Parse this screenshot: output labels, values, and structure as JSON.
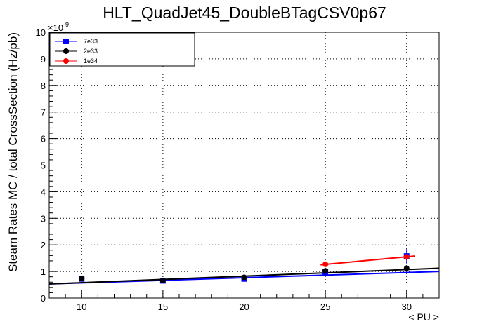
{
  "chart_data": {
    "type": "scatter",
    "title": "HLT_QuadJet45_DoubleBTagCSV0p67",
    "xlabel": "< PU >",
    "ylabel": "Steam Rates MC / total CrossSection (Hz/pb)",
    "y_exponent_label": "×10",
    "y_exponent_power": "-9",
    "xlim": [
      8,
      32
    ],
    "ylim": [
      0,
      10
    ],
    "x_ticks": [
      10,
      15,
      20,
      25,
      30
    ],
    "y_ticks": [
      0,
      1,
      2,
      3,
      4,
      5,
      6,
      7,
      8,
      9,
      10
    ],
    "x_tick_labels": [
      "10",
      "15",
      "20",
      "25",
      "30"
    ],
    "y_tick_labels": [
      "0",
      "1",
      "2",
      "3",
      "4",
      "5",
      "6",
      "7",
      "8",
      "9",
      "10"
    ],
    "grid": true,
    "legend_position": "top-left",
    "series": [
      {
        "name": "7e33",
        "color": "#0000ff",
        "marker": "square",
        "points": [
          {
            "x": 10,
            "y": 0.72,
            "err": 0.06
          },
          {
            "x": 15,
            "y": 0.65,
            "err": 0.05
          },
          {
            "x": 20,
            "y": 0.72,
            "err": 0.05
          },
          {
            "x": 25,
            "y": 0.98,
            "err": 0.07
          },
          {
            "x": 30,
            "y": 1.58,
            "err": 0.28
          }
        ],
        "fit": {
          "x": [
            8,
            32
          ],
          "y": [
            0.53,
            1.0
          ]
        }
      },
      {
        "name": "2e33",
        "color": "#000000",
        "marker": "circle",
        "points": [
          {
            "x": 10,
            "y": 0.73,
            "err": 0.05
          },
          {
            "x": 15,
            "y": 0.66,
            "err": 0.04
          },
          {
            "x": 20,
            "y": 0.78,
            "err": 0.05
          },
          {
            "x": 25,
            "y": 1.02,
            "err": 0.06
          },
          {
            "x": 30,
            "y": 1.12,
            "err": 0.08
          }
        ],
        "fit": {
          "x": [
            8,
            32
          ],
          "y": [
            0.53,
            1.12
          ]
        }
      },
      {
        "name": "1e34",
        "color": "#ff0000",
        "marker": "circle",
        "points": [
          {
            "x": 25,
            "y": 1.27,
            "err": 0.08
          },
          {
            "x": 30,
            "y": 1.55,
            "err": 0.1
          }
        ],
        "fit": {
          "x": [
            24.7,
            30.5
          ],
          "y": [
            1.25,
            1.58
          ]
        }
      }
    ]
  }
}
